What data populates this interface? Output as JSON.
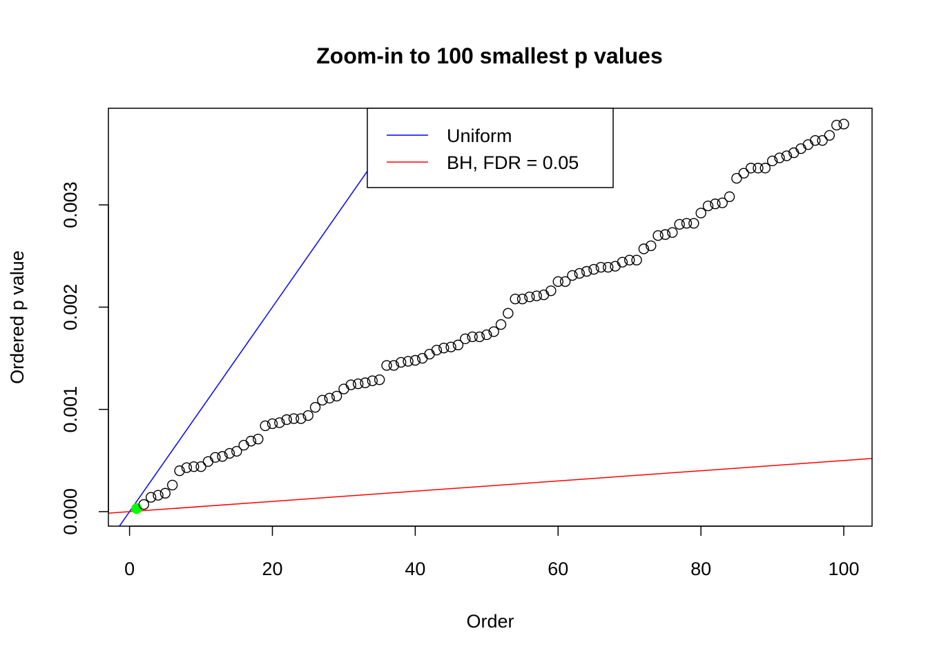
{
  "chart_data": {
    "type": "scatter",
    "title": "Zoom-in to 100 smallest p values",
    "xlabel": "Order",
    "ylabel": "Ordered p value",
    "xlim": [
      -2.96,
      103.96
    ],
    "ylim": [
      -0.000142,
      0.003945
    ],
    "xticks": [
      0,
      20,
      40,
      60,
      80,
      100
    ],
    "xtick_labels": [
      "0",
      "20",
      "40",
      "60",
      "80",
      "100"
    ],
    "yticks": [
      0,
      0.001,
      0.002,
      0.003
    ],
    "ytick_labels": [
      "0.000",
      "0.001",
      "0.002",
      "0.003"
    ],
    "grid": false,
    "legend_placement": "top-center",
    "legend": [
      {
        "label": "Uniform",
        "color": "#0000ff"
      },
      {
        "label": "BH, FDR = 0.05",
        "color": "#ff0000"
      }
    ],
    "lines": [
      {
        "name": "Uniform",
        "color": "#0000ff",
        "intercept": 0,
        "slope": 0.0001
      },
      {
        "name": "BH, FDR = 0.05",
        "color": "#ff0000",
        "intercept": 0,
        "slope": 5e-06
      }
    ],
    "highlighted_points": {
      "indices": [
        1
      ],
      "color": "#00ff00"
    },
    "x": [
      1,
      2,
      3,
      4,
      5,
      6,
      7,
      8,
      9,
      10,
      11,
      12,
      13,
      14,
      15,
      16,
      17,
      18,
      19,
      20,
      21,
      22,
      23,
      24,
      25,
      26,
      27,
      28,
      29,
      30,
      31,
      32,
      33,
      34,
      35,
      36,
      37,
      38,
      39,
      40,
      41,
      42,
      43,
      44,
      45,
      46,
      47,
      48,
      49,
      50,
      51,
      52,
      53,
      54,
      55,
      56,
      57,
      58,
      59,
      60,
      61,
      62,
      63,
      64,
      65,
      66,
      67,
      68,
      69,
      70,
      71,
      72,
      73,
      74,
      75,
      76,
      77,
      78,
      79,
      80,
      81,
      82,
      83,
      84,
      85,
      86,
      87,
      88,
      89,
      90,
      91,
      92,
      93,
      94,
      95,
      96,
      97,
      98,
      99,
      100
    ],
    "y": [
      3e-05,
      7e-05,
      0.00014,
      0.00016,
      0.00018,
      0.00026,
      0.0004,
      0.00043,
      0.00044,
      0.00044,
      0.00049,
      0.00053,
      0.00054,
      0.00057,
      0.00059,
      0.00065,
      0.00069,
      0.00071,
      0.00084,
      0.00086,
      0.00087,
      0.0009,
      0.00091,
      0.00091,
      0.00094,
      0.00102,
      0.00109,
      0.00111,
      0.00113,
      0.0012,
      0.00124,
      0.00125,
      0.00126,
      0.00128,
      0.00129,
      0.00143,
      0.00143,
      0.00146,
      0.00147,
      0.00148,
      0.0015,
      0.00154,
      0.00158,
      0.0016,
      0.00161,
      0.00163,
      0.00169,
      0.00171,
      0.00171,
      0.00173,
      0.00176,
      0.00183,
      0.00194,
      0.00208,
      0.00208,
      0.0021,
      0.00211,
      0.00212,
      0.00216,
      0.00225,
      0.00225,
      0.00231,
      0.00233,
      0.00235,
      0.00237,
      0.00239,
      0.00239,
      0.0024,
      0.00244,
      0.00246,
      0.00246,
      0.00257,
      0.0026,
      0.0027,
      0.00271,
      0.00273,
      0.00281,
      0.00282,
      0.00282,
      0.00292,
      0.00299,
      0.00301,
      0.00302,
      0.00308,
      0.00326,
      0.00331,
      0.00336,
      0.00336,
      0.00336,
      0.00343,
      0.00346,
      0.00348,
      0.00351,
      0.00355,
      0.00359,
      0.00363,
      0.00363,
      0.00368,
      0.00378,
      0.00379
    ]
  }
}
